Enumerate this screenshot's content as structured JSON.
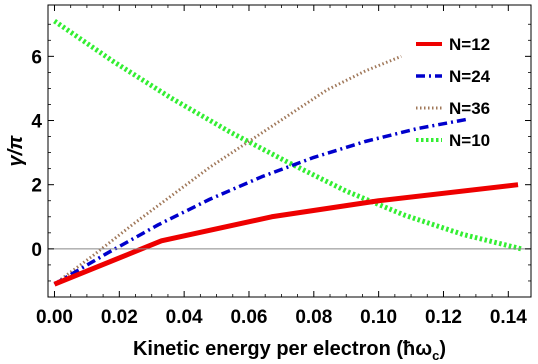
{
  "chart_data": {
    "type": "line",
    "title": "",
    "xlabel": "Kinetic energy per electron (ħω",
    "xlabel_sub": "c",
    "xlabel_close": ")",
    "ylabel": "γ/π",
    "xlim": [
      -0.002,
      0.147
    ],
    "ylim": [
      -1.5,
      7.6
    ],
    "xticks": [
      0.0,
      0.02,
      0.04,
      0.06,
      0.08,
      0.1,
      0.12,
      0.14
    ],
    "xtick_labels": [
      "0.00",
      "0.02",
      "0.04",
      "0.06",
      "0.08",
      "0.10",
      "0.12",
      "0.14"
    ],
    "yticks": [
      0,
      2,
      4,
      6
    ],
    "ytick_labels": [
      "0",
      "2",
      "4",
      "6"
    ],
    "reference_line_y": 0,
    "legend_position": "top-right",
    "grid": false,
    "series": [
      {
        "name": "N=12",
        "color": "#ee0000",
        "style": "solid",
        "x": [
          0.0,
          0.033,
          0.067,
          0.1,
          0.143
        ],
        "y": [
          -1.1,
          0.25,
          1.0,
          1.5,
          2.0
        ]
      },
      {
        "name": "N=24",
        "color": "#0000cc",
        "style": "dashdot",
        "x": [
          0.0,
          0.016,
          0.032,
          0.048,
          0.064,
          0.08,
          0.096,
          0.112,
          0.128
        ],
        "y": [
          -1.1,
          -0.15,
          0.75,
          1.55,
          2.25,
          2.85,
          3.35,
          3.75,
          4.05
        ]
      },
      {
        "name": "N=36",
        "color": "#a0785a",
        "style": "dotted",
        "x": [
          0.0,
          0.012,
          0.024,
          0.036,
          0.048,
          0.06,
          0.072,
          0.084,
          0.096,
          0.107
        ],
        "y": [
          -1.1,
          -0.2,
          0.75,
          1.65,
          2.55,
          3.35,
          4.15,
          4.95,
          5.55,
          6.0
        ]
      },
      {
        "name": "N=10",
        "color": "#33ee33",
        "style": "dotted-thick",
        "x": [
          0.0,
          0.018,
          0.036,
          0.054,
          0.072,
          0.09,
          0.108,
          0.126,
          0.144
        ],
        "y": [
          7.1,
          5.85,
          4.7,
          3.65,
          2.7,
          1.8,
          1.05,
          0.45,
          0.0
        ]
      }
    ]
  }
}
